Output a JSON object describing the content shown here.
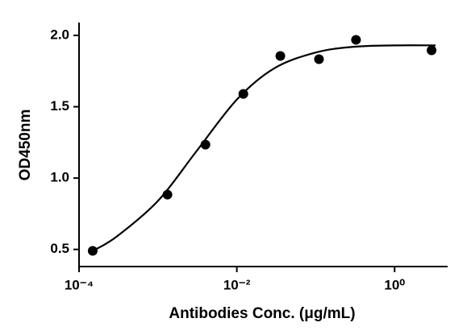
{
  "chart_data": {
    "type": "scatter",
    "xlabel": "Antibodies Conc. (μg/mL)",
    "ylabel": "OD450nm",
    "xscale": "log",
    "grid": false,
    "xlim": [
      0.0001,
      4.7
    ],
    "ylim": [
      0.38,
      2.09
    ],
    "xticks": [
      {
        "value": 0.0001,
        "label": "10⁻⁴"
      },
      {
        "value": 0.01,
        "label": "10⁻²"
      },
      {
        "value": 1,
        "label": "10⁰"
      }
    ],
    "yticks": [
      {
        "value": 0.5,
        "label": "0.5"
      },
      {
        "value": 1.0,
        "label": "1.0"
      },
      {
        "value": 1.5,
        "label": "1.5"
      },
      {
        "value": 2.0,
        "label": "2.0"
      }
    ],
    "series": [
      {
        "kind": "points",
        "color": "#000000",
        "x": [
          0.000149,
          0.00132,
          0.004,
          0.0121,
          0.0356,
          0.11,
          0.324,
          2.94
        ],
        "values": [
          0.49,
          0.884,
          1.234,
          1.59,
          1.856,
          1.833,
          1.969,
          1.895
        ]
      },
      {
        "kind": "fit",
        "color": "#000000",
        "x": [
          0.00015,
          0.0003,
          0.001,
          0.003,
          0.01,
          0.03,
          0.1,
          0.3,
          1,
          3.3
        ],
        "values": [
          0.49,
          0.59,
          0.84,
          1.18,
          1.55,
          1.77,
          1.88,
          1.92,
          1.93,
          1.93
        ]
      }
    ]
  }
}
